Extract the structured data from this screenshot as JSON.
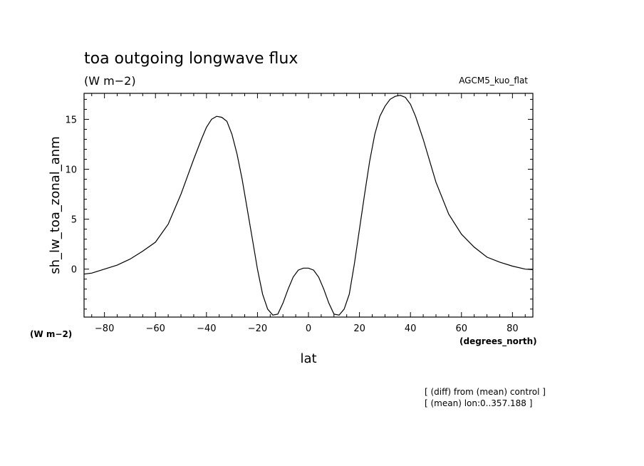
{
  "chart_data": {
    "type": "line",
    "title": "toa outgoing longwave flux",
    "subtitle": "(W m−2)",
    "experiment_label": "AGCM5_kuo_flat",
    "xlabel": "lat",
    "xunits": "(degrees_north)",
    "ylabel": "sh_lw_toa_zonal_anm",
    "yunits": "(W m−2)",
    "xlim": [
      -88,
      88
    ],
    "ylim": [
      -4.8,
      17.6
    ],
    "x_ticks": [
      -80,
      -60,
      -40,
      -20,
      0,
      20,
      40,
      60,
      80
    ],
    "y_ticks": [
      0,
      5,
      10,
      15
    ],
    "grid": false,
    "notes": [
      "[ (diff) from (mean) control ]",
      "[ (mean) lon:0..357.188 ]"
    ],
    "series": [
      {
        "x": [
          -88,
          -85,
          -80,
          -75,
          -70,
          -65,
          -60,
          -55,
          -50,
          -45,
          -42,
          -40,
          -38,
          -36,
          -34,
          -32,
          -30,
          -28,
          -26,
          -24,
          -22,
          -20,
          -18,
          -16,
          -14,
          -12,
          -10,
          -8,
          -6,
          -4,
          -2,
          0,
          2,
          4,
          6,
          8,
          10,
          12,
          14,
          16,
          18,
          20,
          22,
          24,
          26,
          28,
          30,
          32,
          34,
          36,
          38,
          40,
          42,
          45,
          50,
          55,
          60,
          65,
          70,
          75,
          80,
          85,
          88
        ],
        "y": [
          -0.5,
          -0.4,
          0.0,
          0.4,
          1.0,
          1.8,
          2.7,
          4.5,
          7.5,
          11.0,
          13.0,
          14.2,
          15.0,
          15.3,
          15.2,
          14.8,
          13.5,
          11.5,
          9.0,
          6.0,
          3.0,
          0.0,
          -2.5,
          -4.0,
          -4.6,
          -4.5,
          -3.4,
          -2.0,
          -0.8,
          -0.1,
          0.1,
          0.1,
          -0.1,
          -0.8,
          -2.0,
          -3.4,
          -4.5,
          -4.6,
          -4.0,
          -2.5,
          0.5,
          4.0,
          7.5,
          10.8,
          13.5,
          15.3,
          16.3,
          17.0,
          17.3,
          17.4,
          17.2,
          16.5,
          15.3,
          13.0,
          8.7,
          5.5,
          3.5,
          2.2,
          1.2,
          0.7,
          0.3,
          0.0,
          -0.05
        ]
      }
    ]
  }
}
